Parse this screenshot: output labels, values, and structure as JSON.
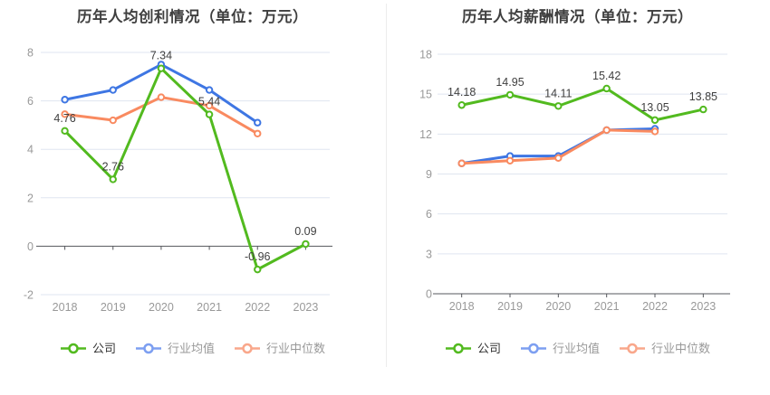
{
  "page": {
    "background": "#ffffff",
    "divider_color": "#ececec"
  },
  "styles": {
    "grid_line_color": "#dfe5f0",
    "axis_line_color": "#55575c",
    "tick_label_color": "#999999",
    "data_label_color": "#404040"
  },
  "chart_data": [
    {
      "type": "line",
      "title": "历年人均创利情况（单位：万元）",
      "categories": [
        "2018",
        "2019",
        "2020",
        "2021",
        "2022",
        "2023"
      ],
      "series": [
        {
          "name": "公司",
          "color": "#52ba1f",
          "legend_color": "#52ba1f",
          "values": [
            4.76,
            2.76,
            7.34,
            5.44,
            -0.96,
            0.09
          ],
          "labels": [
            "4.76",
            "2.76",
            "7.34",
            "5.44",
            "-0.96",
            "0.09"
          ]
        },
        {
          "name": "行业均值",
          "color": "#3e76e3",
          "legend_color": "#7d9ff1",
          "values": [
            6.05,
            6.45,
            7.5,
            6.45,
            5.1,
            null
          ]
        },
        {
          "name": "行业中位数",
          "color": "#f98a60",
          "legend_color": "#f9a78b",
          "values": [
            5.45,
            5.2,
            6.15,
            5.8,
            4.65,
            null
          ]
        }
      ],
      "xlabel": "",
      "ylabel": "",
      "ylim": [
        -2,
        8
      ],
      "yticks": [
        8,
        6,
        4,
        2,
        0,
        -2
      ],
      "grid": true,
      "legend_position": "bottom"
    },
    {
      "type": "line",
      "title": "历年人均薪酬情况（单位：万元）",
      "categories": [
        "2018",
        "2019",
        "2020",
        "2021",
        "2022",
        "2023"
      ],
      "series": [
        {
          "name": "公司",
          "color": "#52ba1f",
          "legend_color": "#52ba1f",
          "values": [
            14.18,
            14.95,
            14.11,
            15.42,
            13.05,
            13.85
          ],
          "labels": [
            "14.18",
            "14.95",
            "14.11",
            "15.42",
            "13.05",
            "13.85"
          ]
        },
        {
          "name": "行业均值",
          "color": "#3e76e3",
          "legend_color": "#7d9ff1",
          "values": [
            9.8,
            10.35,
            10.35,
            12.3,
            12.4,
            null
          ]
        },
        {
          "name": "行业中位数",
          "color": "#f98a60",
          "legend_color": "#f9a78b",
          "values": [
            9.8,
            10.0,
            10.2,
            12.3,
            12.2,
            null
          ]
        }
      ],
      "xlabel": "",
      "ylabel": "",
      "ylim": [
        0,
        18
      ],
      "yticks": [
        18,
        15,
        12,
        9,
        6,
        3,
        0
      ],
      "grid": true,
      "legend_position": "bottom"
    }
  ]
}
